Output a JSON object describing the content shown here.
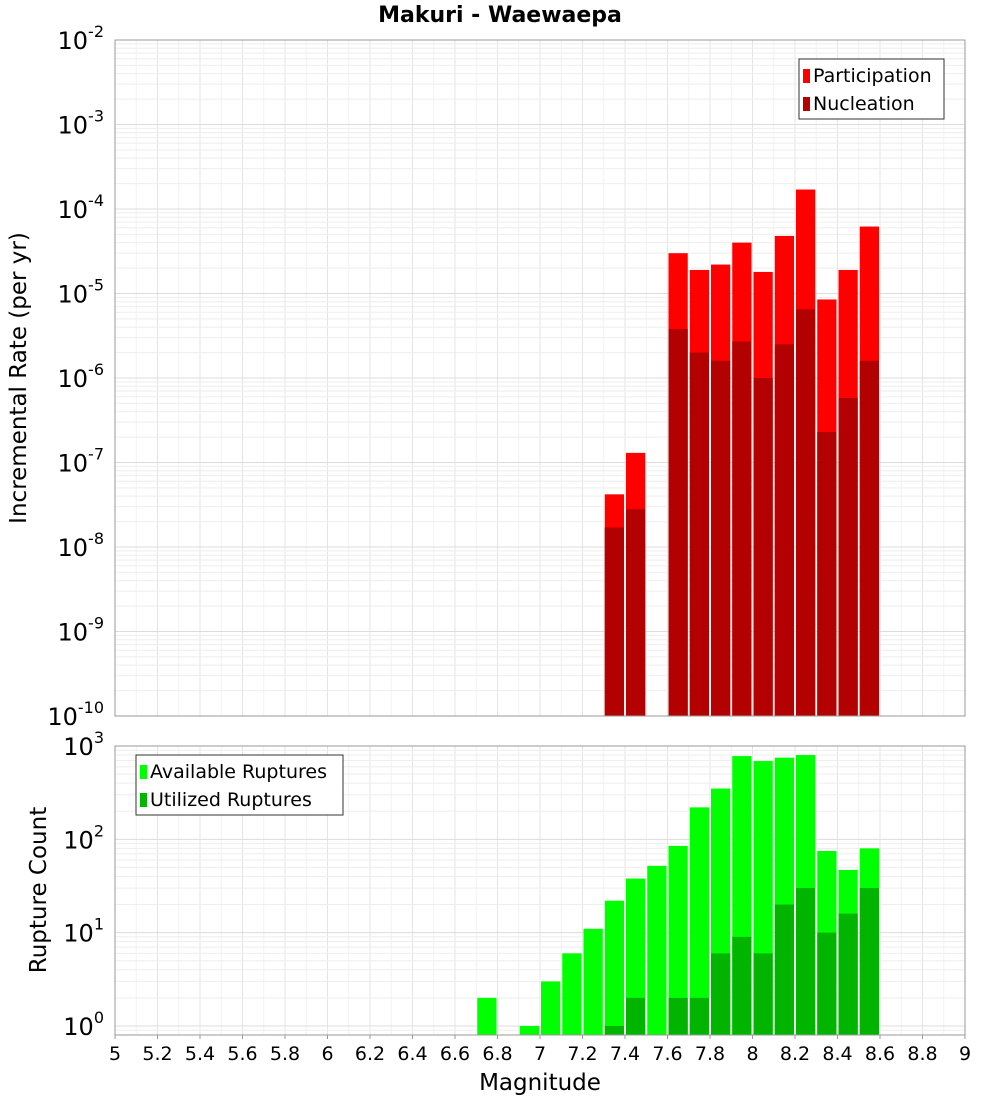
{
  "chart_data": [
    {
      "type": "bar",
      "title": "Makuri - Waewaepa",
      "xlabel": "",
      "ylabel": "Incremental Rate (per yr)",
      "xlim": [
        5,
        9
      ],
      "ylim": [
        1e-10,
        0.01
      ],
      "yscale": "log",
      "y_tick_exponents": [
        -10,
        -9,
        -8,
        -7,
        -6,
        -5,
        -4,
        -3,
        -2
      ],
      "grid": true,
      "legend_position": "top-right",
      "bar_width": 0.1,
      "x": [
        7.35,
        7.45,
        7.65,
        7.75,
        7.85,
        7.95,
        8.05,
        8.15,
        8.25,
        8.35,
        8.45,
        8.55
      ],
      "series": [
        {
          "name": "Participation",
          "color": "#ff0000",
          "values": [
            4.2e-08,
            1.3e-07,
            3e-05,
            1.9e-05,
            2.2e-05,
            4e-05,
            1.8e-05,
            4.8e-05,
            0.00017,
            8.5e-06,
            1.9e-05,
            6.2e-05
          ]
        },
        {
          "name": "Nucleation",
          "color": "#b30000",
          "values": [
            1.7e-08,
            2.8e-08,
            3.8e-06,
            2e-06,
            1.6e-06,
            2.7e-06,
            1e-06,
            2.5e-06,
            6.5e-06,
            2.3e-07,
            5.8e-07,
            1.6e-06
          ]
        }
      ]
    },
    {
      "type": "bar",
      "title": "",
      "xlabel": "Magnitude",
      "ylabel": "Rupture Count",
      "xlim": [
        5,
        9
      ],
      "x_ticks": [
        "5",
        "5.2",
        "5.4",
        "5.6",
        "5.8",
        "6",
        "6.2",
        "6.4",
        "6.6",
        "6.8",
        "7",
        "7.2",
        "7.4",
        "7.6",
        "7.8",
        "8",
        "8.2",
        "8.4",
        "8.6",
        "8.8",
        "9"
      ],
      "ylim": [
        0.8,
        1000
      ],
      "yscale": "log",
      "y_tick_exponents": [
        0,
        1,
        2,
        3
      ],
      "grid": true,
      "legend_position": "top-left",
      "bar_width": 0.1,
      "series": [
        {
          "name": "Available Ruptures",
          "color": "#00ff00",
          "x": [
            6.75,
            6.95,
            7.05,
            7.15,
            7.25,
            7.35,
            7.45,
            7.55,
            7.65,
            7.75,
            7.85,
            7.95,
            8.05,
            8.15,
            8.25,
            8.35,
            8.45,
            8.55
          ],
          "values": [
            2,
            1,
            3,
            6,
            11,
            22,
            38,
            52,
            85,
            220,
            350,
            780,
            690,
            750,
            800,
            75,
            47,
            80
          ]
        },
        {
          "name": "Utilized Ruptures",
          "color": "#00b400",
          "x": [
            7.35,
            7.45,
            7.65,
            7.75,
            7.85,
            7.95,
            8.05,
            8.15,
            8.25,
            8.35,
            8.45,
            8.55
          ],
          "values": [
            1,
            2,
            2,
            2,
            6,
            9,
            6,
            20,
            30,
            10,
            16,
            30
          ]
        }
      ]
    }
  ]
}
